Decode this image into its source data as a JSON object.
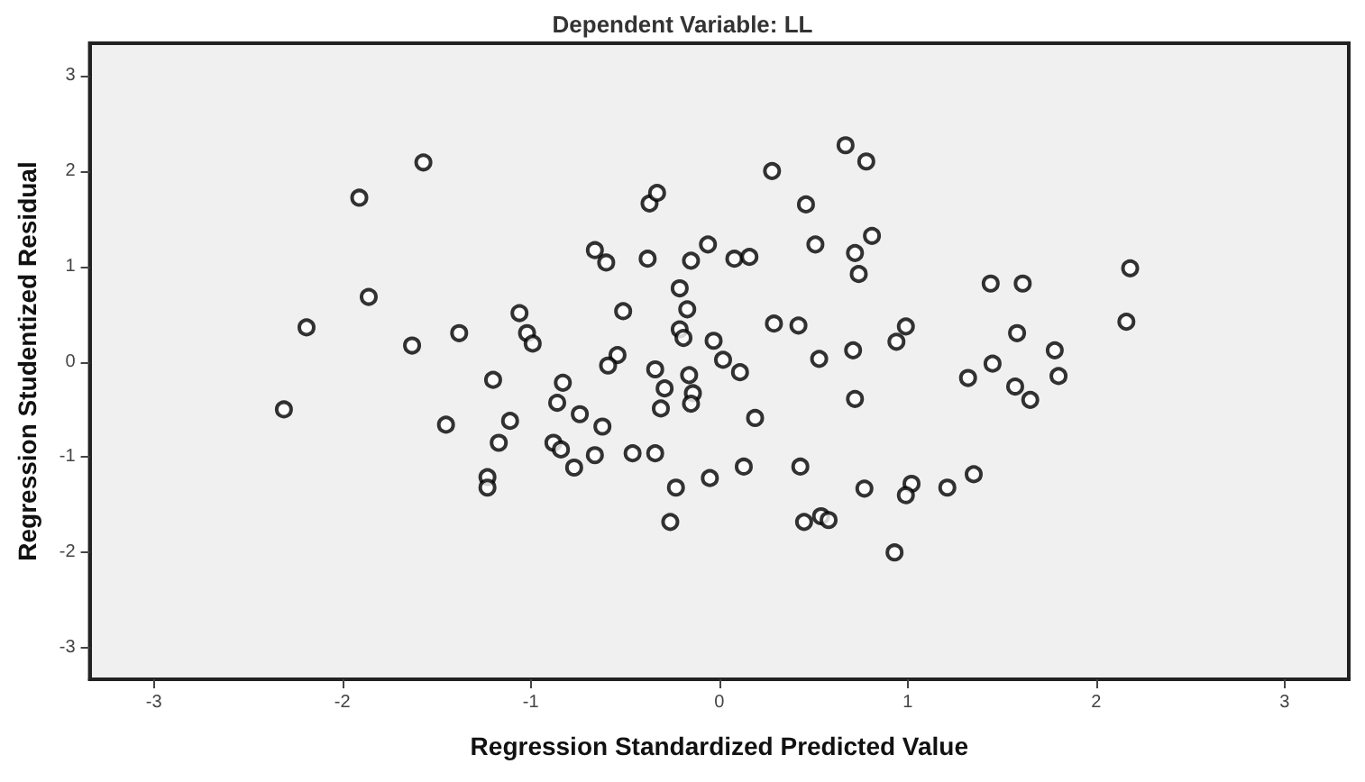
{
  "chart_data": {
    "type": "scatter",
    "title": "Dependent Variable: LL",
    "xlabel": "Regression Standardized Predicted Value",
    "ylabel": "Regression Studentized Residual",
    "xlim": [
      -3.34,
      3.34
    ],
    "ylim": [
      -3.33,
      3.34
    ],
    "xticks": [
      -3,
      -2,
      -1,
      0,
      1,
      2,
      3
    ],
    "yticks": [
      -3,
      -2,
      -1,
      0,
      1,
      2,
      3
    ],
    "grid": false,
    "marker": "circle",
    "series": [
      {
        "color": "#000000",
        "x": [
          -2.19,
          -1.91,
          -1.57,
          -1.86,
          -1.63,
          -1.38,
          -1.06,
          -1.02,
          -0.99,
          -0.37,
          -0.33,
          -0.66,
          -0.6,
          -0.38,
          -0.15,
          -0.06,
          -0.21,
          -0.17,
          -0.51,
          -0.54,
          -0.59,
          -0.21,
          -0.19,
          -0.03,
          0.02,
          -2.31,
          -1.45,
          -1.2,
          -1.11,
          -1.17,
          -1.23,
          -1.23,
          -0.83,
          -0.86,
          -0.74,
          -0.88,
          -0.84,
          -0.77,
          -0.66,
          -0.62,
          -0.46,
          -0.34,
          -0.34,
          -0.29,
          -0.31,
          -0.16,
          -0.14,
          -0.15,
          -0.23,
          -0.26,
          -0.05,
          0.28,
          0.67,
          0.78,
          0.46,
          0.81,
          0.51,
          0.72,
          0.74,
          0.08,
          0.16,
          0.29,
          0.42,
          0.53,
          0.71,
          0.99,
          0.94,
          1.44,
          1.61,
          1.58,
          2.18,
          2.16,
          1.78,
          1.45,
          1.32,
          1.8,
          1.57,
          1.65,
          0.11,
          0.72,
          0.19,
          0.13,
          0.43,
          0.77,
          1.02,
          0.99,
          1.21,
          1.35,
          0.45,
          0.54,
          0.58,
          0.93
        ],
        "values": [
          0.36,
          1.72,
          2.09,
          0.68,
          0.17,
          0.3,
          0.51,
          0.3,
          0.19,
          1.66,
          1.77,
          1.17,
          1.04,
          1.08,
          1.06,
          1.23,
          0.77,
          0.55,
          0.53,
          0.07,
          -0.04,
          0.34,
          0.25,
          0.22,
          0.02,
          -0.5,
          -0.66,
          -0.19,
          -0.62,
          -0.85,
          -1.21,
          -1.32,
          -0.22,
          -0.43,
          -0.55,
          -0.85,
          -0.92,
          -1.11,
          -0.98,
          -0.68,
          -0.96,
          -0.96,
          -0.08,
          -0.28,
          -0.49,
          -0.14,
          -0.33,
          -0.44,
          -1.32,
          -1.68,
          -1.22,
          2.0,
          2.27,
          2.1,
          1.65,
          1.32,
          1.23,
          1.14,
          0.92,
          1.08,
          1.1,
          0.4,
          0.38,
          0.03,
          0.12,
          0.37,
          0.21,
          0.82,
          0.82,
          0.3,
          0.98,
          0.42,
          0.12,
          -0.02,
          -0.17,
          -0.15,
          -0.26,
          -0.4,
          -0.11,
          -0.39,
          -0.59,
          -1.1,
          -1.1,
          -1.33,
          -1.28,
          -1.4,
          -1.32,
          -1.18,
          -1.68,
          -1.62,
          -1.66,
          -2.0
        ]
      }
    ]
  }
}
